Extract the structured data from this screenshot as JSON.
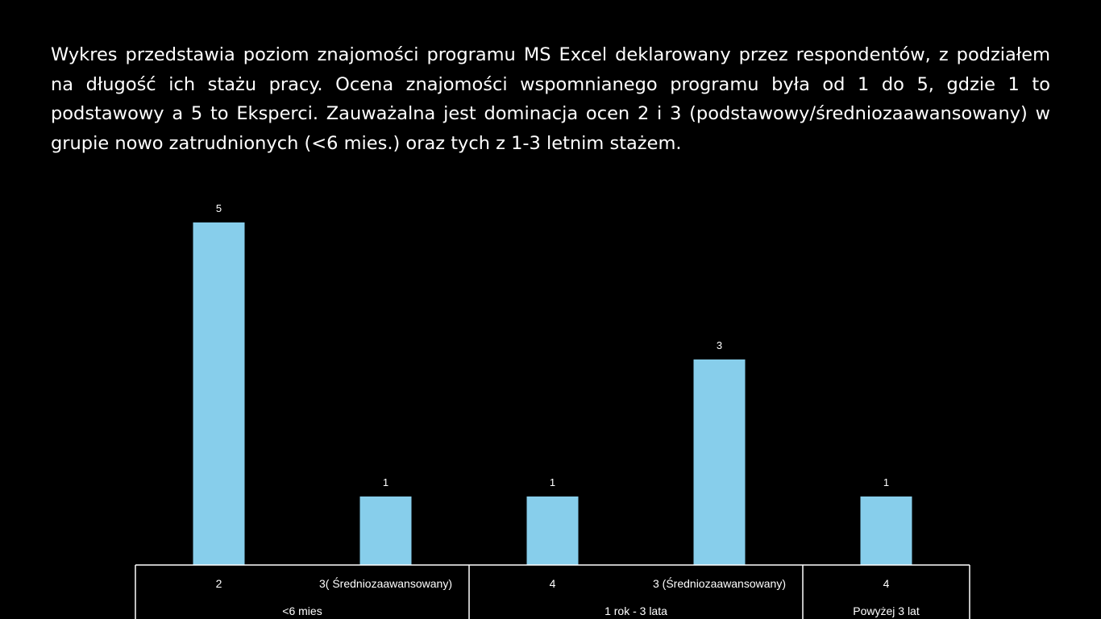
{
  "description": "Wykres przedstawia poziom znajomości programu MS Excel deklarowany przez respondentów, z podziałem na długość ich stażu pracy. Ocena znajomości wspomnianego programu była od 1 do 5, gdzie 1 to podstawowy a 5 to Eksperci. Zauważalna jest dominacja ocen 2 i 3 (podstawowy/średniozaawansowany) w grupie nowo zatrudnionych (<6 mies.) oraz tych z 1-3 letnim stażem.",
  "chart_data": {
    "type": "bar",
    "groups": [
      {
        "label": "<6 mies",
        "categories": [
          "2",
          "3( Średniozaawansowany)"
        ]
      },
      {
        "label": "1 rok - 3 lata",
        "categories": [
          "4",
          "3 (Średniozaawansowany)"
        ]
      },
      {
        "label": "Powyżej 3 lat",
        "categories": [
          "4"
        ]
      }
    ],
    "categories": [
      "2",
      "3( Średniozaawansowany)",
      "4",
      "3 (Średniozaawansowany)",
      "4"
    ],
    "values": [
      5,
      1,
      1,
      3,
      1
    ],
    "ylim": [
      0,
      5
    ],
    "bar_color": "#87CEEB",
    "axis_color": "#ffffff",
    "grid": false,
    "data_labels": true
  }
}
